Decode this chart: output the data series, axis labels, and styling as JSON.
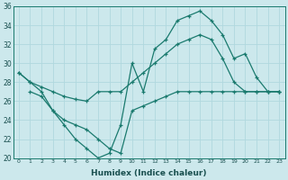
{
  "xlabel": "Humidex (Indice chaleur)",
  "ylabel": "",
  "background_color": "#cce8ec",
  "grid_color": "#b0d8de",
  "line_color": "#1a7a6e",
  "xlim": [
    -0.5,
    23.5
  ],
  "ylim": [
    20,
    36
  ],
  "yticks": [
    20,
    22,
    24,
    26,
    28,
    30,
    32,
    34,
    36
  ],
  "xticks": [
    0,
    1,
    2,
    3,
    4,
    5,
    6,
    7,
    8,
    9,
    10,
    11,
    12,
    13,
    14,
    15,
    16,
    17,
    18,
    19,
    20,
    21,
    22,
    23
  ],
  "line1_x": [
    0,
    1,
    2,
    3,
    4,
    5,
    6,
    7,
    8,
    9,
    10,
    11,
    12,
    13,
    14,
    15,
    16,
    17,
    18,
    19,
    20,
    21,
    22,
    23
  ],
  "line1_y": [
    29.0,
    28.0,
    27.0,
    25.0,
    23.5,
    22.0,
    21.0,
    20.0,
    20.5,
    23.5,
    30.0,
    27.0,
    31.5,
    32.5,
    34.5,
    35.0,
    35.5,
    34.5,
    33.0,
    30.5,
    31.0,
    28.5,
    27.0,
    27.0
  ],
  "line2_x": [
    0,
    1,
    2,
    3,
    4,
    5,
    6,
    7,
    8,
    9,
    10,
    11,
    12,
    13,
    14,
    15,
    16,
    17,
    18,
    19,
    20,
    21,
    22,
    23
  ],
  "line2_y": [
    29.0,
    28.0,
    27.5,
    27.0,
    26.5,
    26.2,
    26.0,
    27.0,
    27.0,
    27.0,
    28.0,
    29.0,
    30.0,
    31.0,
    32.0,
    32.5,
    33.0,
    32.5,
    30.5,
    28.0,
    27.0,
    27.0,
    27.0,
    27.0
  ],
  "line3_x": [
    1,
    2,
    3,
    4,
    5,
    6,
    7,
    8,
    9,
    10,
    11,
    12,
    13,
    14,
    15,
    16,
    17,
    18,
    19,
    20,
    21,
    22,
    23
  ],
  "line3_y": [
    27.0,
    26.5,
    25.0,
    24.0,
    23.5,
    23.0,
    22.0,
    21.0,
    20.5,
    25.0,
    25.5,
    26.0,
    26.5,
    27.0,
    27.0,
    27.0,
    27.0,
    27.0,
    27.0,
    27.0,
    27.0,
    27.0,
    27.0
  ]
}
